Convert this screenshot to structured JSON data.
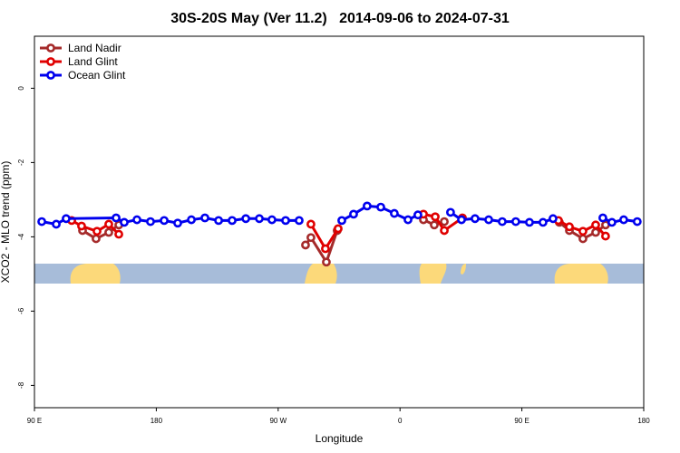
{
  "chart_data": {
    "type": "line",
    "title": "30S-20S May (Ver 11.2)   2014-09-06 to 2024-07-31",
    "x_label": "Longitude",
    "y_label": "XCO2 - MLO trend (ppm)",
    "xlim": [
      90,
      540
    ],
    "ylim": [
      -8.6,
      1.4
    ],
    "xticks": [
      {
        "value": 90,
        "label": "90 E"
      },
      {
        "value": 180,
        "label": "180"
      },
      {
        "value": 270,
        "label": "90 W"
      },
      {
        "value": 360,
        "label": "0"
      },
      {
        "value": 450,
        "label": "90 E"
      },
      {
        "value": 540,
        "label": "180"
      }
    ],
    "yticks": [
      0,
      -2,
      -4,
      -6,
      -8
    ],
    "legend": "top-left",
    "series": [
      {
        "name": "Land Nadir",
        "color": "#a52a2a",
        "x": [
          125.5,
          135.5,
          144.9,
          152.3,
          null,
          290.2,
          294.2,
          305.6,
          313.6,
          null,
          377.3,
          385.3,
          392.7,
          null,
          477.7,
          485.1,
          495.1,
          504.5,
          511.8
        ],
        "values": [
          -3.83,
          -4.05,
          -3.88,
          -3.68,
          null,
          -4.22,
          -4.02,
          -4.68,
          -3.83,
          null,
          -3.54,
          -3.68,
          -3.59,
          null,
          -3.61,
          -3.83,
          -4.05,
          -3.88,
          -3.68
        ]
      },
      {
        "name": "Land Glint",
        "color": "#e00000",
        "x": [
          117.5,
          124.8,
          136.2,
          144.9,
          152.3,
          null,
          294.2,
          304.9,
          314.3,
          null,
          377.3,
          386.0,
          392.7,
          406.1,
          null,
          477.0,
          485.1,
          495.1,
          504.5,
          511.8
        ],
        "values": [
          -3.56,
          -3.71,
          -3.85,
          -3.66,
          -3.93,
          null,
          -3.66,
          -4.32,
          -3.78,
          null,
          -3.39,
          -3.46,
          -3.83,
          -3.49,
          null,
          -3.56,
          -3.73,
          -3.85,
          -3.68,
          -3.98
        ]
      },
      {
        "name": "Ocean Glint",
        "color": "#0000ee",
        "x": [
          95.4,
          106.1,
          113.4,
          150.3,
          156.3,
          165.7,
          175.7,
          185.8,
          195.8,
          205.9,
          215.9,
          226.0,
          236.0,
          246.1,
          256.1,
          265.4,
          275.5,
          285.5,
          null,
          317.0,
          325.7,
          335.7,
          345.8,
          355.8,
          365.9,
          373.2,
          null,
          397.3,
          405.4,
          415.4,
          425.5,
          435.5,
          445.5,
          455.6,
          465.6,
          473.0,
          null,
          509.8,
          516.5,
          525.2,
          535.2
        ],
        "values": [
          -3.59,
          -3.66,
          -3.51,
          -3.49,
          -3.61,
          -3.54,
          -3.59,
          -3.56,
          -3.63,
          -3.54,
          -3.49,
          -3.56,
          -3.56,
          -3.51,
          -3.51,
          -3.54,
          -3.56,
          -3.56,
          null,
          -3.56,
          -3.39,
          -3.17,
          -3.2,
          -3.37,
          -3.54,
          -3.41,
          null,
          -3.34,
          -3.54,
          -3.51,
          -3.54,
          -3.59,
          -3.59,
          -3.61,
          -3.61,
          -3.51,
          null,
          -3.49,
          -3.61,
          -3.54,
          -3.59
        ]
      }
    ]
  }
}
